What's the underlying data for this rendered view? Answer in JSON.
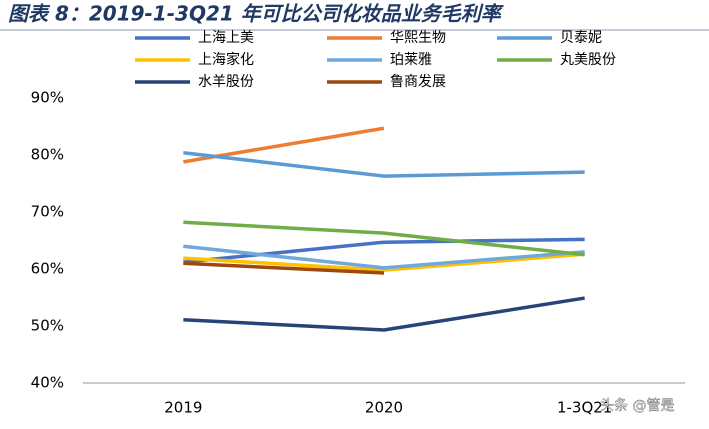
{
  "chart_data": {
    "type": "line",
    "title": "图表 8：2019-1-3Q21 年可比公司化妆品业务毛利率",
    "watermark": "头条 @管是",
    "categories": [
      "2019",
      "2020",
      "1-3Q21"
    ],
    "ylim": [
      40,
      90
    ],
    "yticks": [
      {
        "value": 40,
        "label": "40%"
      },
      {
        "value": 50,
        "label": "50%"
      },
      {
        "value": 60,
        "label": "60%"
      },
      {
        "value": 70,
        "label": "70%"
      },
      {
        "value": 80,
        "label": "80%"
      },
      {
        "value": 90,
        "label": "90%"
      }
    ],
    "grid": false,
    "legend": "top",
    "series": [
      {
        "name": "上海上美",
        "color": "#4472c4",
        "values": [
          61.2,
          64.7,
          65.2
        ]
      },
      {
        "name": "华熙生物",
        "color": "#ed7d31",
        "values": [
          78.8,
          84.7,
          null
        ]
      },
      {
        "name": "贝泰妮",
        "color": "#5b9bd5",
        "values": [
          80.4,
          76.3,
          77.0
        ]
      },
      {
        "name": "上海家化",
        "color": "#ffc000",
        "values": [
          61.9,
          59.8,
          62.6
        ]
      },
      {
        "name": "珀莱雅",
        "color": "#6fa8dc",
        "values": [
          64.0,
          60.2,
          63.0
        ]
      },
      {
        "name": "丸美股份",
        "color": "#70ad47",
        "values": [
          68.2,
          66.3,
          62.5
        ]
      },
      {
        "name": "水羊股份",
        "color": "#264478",
        "values": [
          51.1,
          49.3,
          54.9
        ]
      },
      {
        "name": "鲁商发展",
        "color": "#9e480e",
        "values": [
          61.0,
          59.3,
          null
        ]
      }
    ]
  }
}
